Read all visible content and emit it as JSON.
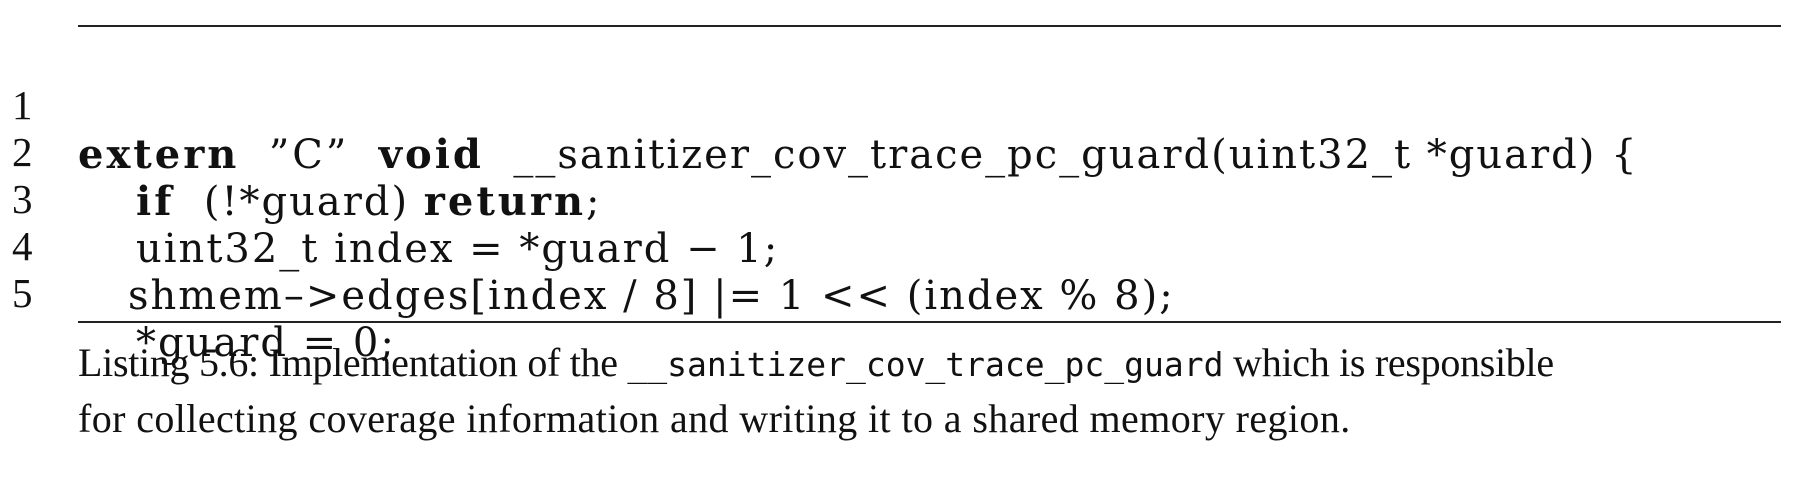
{
  "listing": {
    "lines": [
      {
        "number": "1",
        "kw_extern": "extern",
        "str_c": "”C”",
        "kw_void": "void",
        "rest": "__sanitizer_cov_trace_pc_guard(uint32_t *guard) {"
      },
      {
        "number": "2",
        "kw_if": "if",
        "middle": "(!*guard)",
        "kw_return": "return",
        "rest": ";"
      },
      {
        "number": "3",
        "text": "uint32_t index = *guard − 1;"
      },
      {
        "number": "4",
        "text": "shmem–>edges[index / 8] |= 1 << (index % 8);"
      },
      {
        "number": "5",
        "text": "*guard = 0;"
      }
    ],
    "caption": {
      "label": "Listing 5.6:",
      "text_before": "Implementation of the",
      "function_name": "__sanitizer_cov_trace_pc_guard",
      "text_after": "which is responsible",
      "line2": "for collecting coverage information and writing it to a shared memory region."
    }
  }
}
